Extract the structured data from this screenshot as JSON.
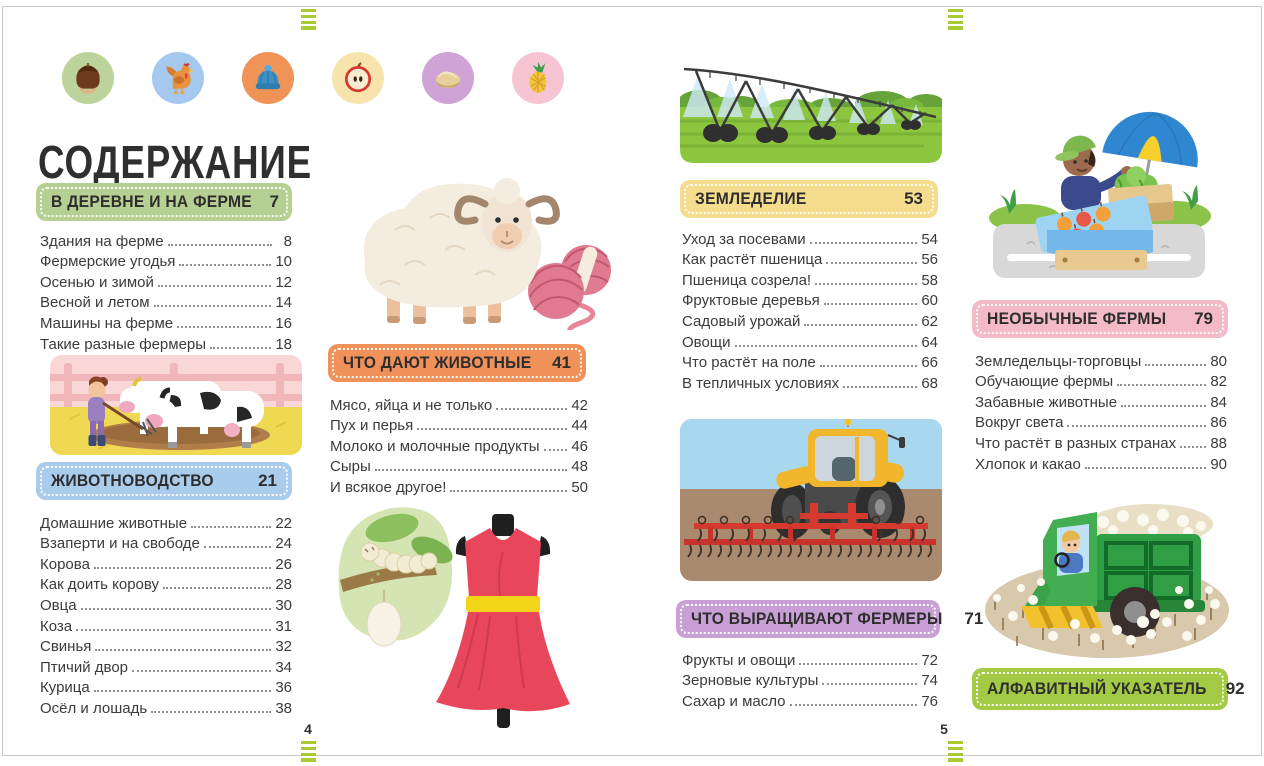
{
  "page": {
    "title": "СОДЕРЖАНИЕ",
    "left_page_number": "4",
    "right_page_number": "5"
  },
  "colors": {
    "stitch_green": "#a8ca32",
    "leader_dots": "#8f8f8f",
    "heading_text": "#2e2e2e"
  },
  "icons": [
    {
      "name": "chestnut-icon",
      "bg": "#bcd49c"
    },
    {
      "name": "rooster-icon",
      "bg": "#a5c9ee"
    },
    {
      "name": "winter-hat-icon",
      "bg": "#ef9356"
    },
    {
      "name": "apple-half-icon",
      "bg": "#f7e4ad"
    },
    {
      "name": "pastry-icon",
      "bg": "#cfa3d6"
    },
    {
      "name": "pineapple-icon",
      "bg": "#f6c4d3"
    }
  ],
  "sections": [
    {
      "title": "В ДЕРЕВНЕ И НА ФЕРМЕ",
      "page": "7",
      "color": "#b6cf92",
      "items": [
        {
          "label": "Здания на ферме",
          "page": "8"
        },
        {
          "label": "Фермерские угодья",
          "page": "10"
        },
        {
          "label": "Осенью и зимой",
          "page": "12"
        },
        {
          "label": "Весной и летом",
          "page": "14"
        },
        {
          "label": "Машины на ферме",
          "page": "16"
        },
        {
          "label": "Такие разные фермеры",
          "page": "18"
        }
      ]
    },
    {
      "title": "ЖИВОТНОВОДСТВО",
      "page": "21",
      "color": "#a9cbec",
      "items": [
        {
          "label": "Домашние животные",
          "page": "22"
        },
        {
          "label": "Взаперти и на свободе",
          "page": "24"
        },
        {
          "label": "Корова",
          "page": "26"
        },
        {
          "label": "Как доить корову",
          "page": "28"
        },
        {
          "label": "Овца",
          "page": "30"
        },
        {
          "label": "Коза",
          "page": "31"
        },
        {
          "label": "Свинья",
          "page": "32"
        },
        {
          "label": "Птичий двор",
          "page": "34"
        },
        {
          "label": "Курица",
          "page": "36"
        },
        {
          "label": "Осёл и лошадь",
          "page": "38"
        }
      ]
    },
    {
      "title": "ЧТО ДАЮТ ЖИВОТНЫЕ",
      "page": "41",
      "color": "#f0915a",
      "items": [
        {
          "label": "Мясо, яйца и не только",
          "page": "42"
        },
        {
          "label": "Пух и перья",
          "page": "44"
        },
        {
          "label": "Молоко и молочные продукты",
          "page": "46"
        },
        {
          "label": "Сыры",
          "page": "48"
        },
        {
          "label": "И всякое другое!",
          "page": "50"
        }
      ]
    },
    {
      "title": "ЗЕМЛЕДЕЛИЕ",
      "page": "53",
      "color": "#f6dd8d",
      "items": [
        {
          "label": "Уход за посевами",
          "page": "54"
        },
        {
          "label": "Как растёт пшеница",
          "page": "56"
        },
        {
          "label": "Пшеница созрела!",
          "page": "58"
        },
        {
          "label": "Фруктовые деревья",
          "page": "60"
        },
        {
          "label": "Садовый урожай",
          "page": "62"
        },
        {
          "label": "Овощи",
          "page": "64"
        },
        {
          "label": "Что растёт на поле",
          "page": "66"
        },
        {
          "label": "В тепличных условиях",
          "page": "68"
        }
      ]
    },
    {
      "title": "ЧТО ВЫРАЩИВАЮТ ФЕРМЕРЫ",
      "page": "71",
      "color": "#c9a0d6",
      "items": [
        {
          "label": "Фрукты и овощи",
          "page": "72"
        },
        {
          "label": "Зерновые культуры",
          "page": "74"
        },
        {
          "label": "Сахар и масло",
          "page": "76"
        }
      ]
    },
    {
      "title": "НЕОБЫЧНЫЕ ФЕРМЫ",
      "page": "79",
      "color": "#f4bac8",
      "items": [
        {
          "label": "Земледельцы-торговцы",
          "page": "80"
        },
        {
          "label": "Обучающие фермы",
          "page": "82"
        },
        {
          "label": "Забавные животные",
          "page": "84"
        },
        {
          "label": "Вокруг света",
          "page": "86"
        },
        {
          "label": "Что растёт в разных странах",
          "page": "88"
        },
        {
          "label": "Хлопок и какао",
          "page": "90"
        }
      ]
    },
    {
      "title": "АЛФАВИТНЫЙ УКАЗАТЕЛЬ",
      "page": "92",
      "color": "#a3ca44",
      "items": []
    }
  ],
  "illustrations": [
    "sheep-and-yarn",
    "cows-and-farmer",
    "silkworm-and-dress",
    "irrigation-machine",
    "tractor-with-harrow",
    "market-vendor",
    "cotton-harvester"
  ]
}
